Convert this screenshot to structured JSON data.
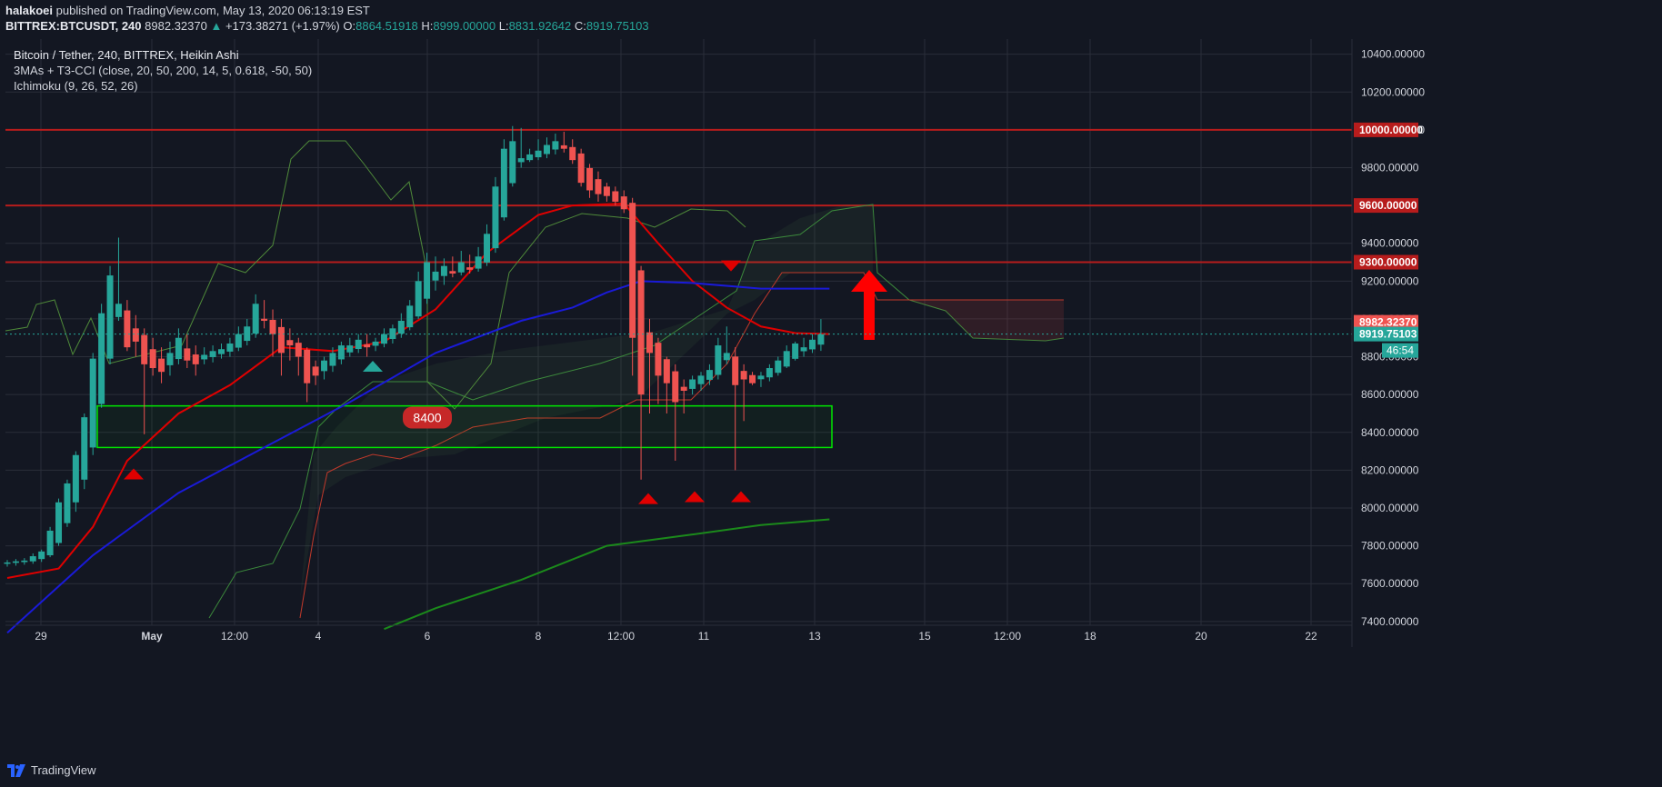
{
  "header": {
    "publisher_line_bold": "halakoei",
    "publisher_line_rest": " published on TradingView.com, May 13, 2020 06:13:19 EST",
    "symbol": "BITTREX:BTCUSDT, 240",
    "last": "8982.32370",
    "change": "+173.38271 (+1.97%)",
    "o_label": "O:",
    "o_val": "8864.51918",
    "h_label": "H:",
    "h_val": "8999.00000",
    "l_label": "L:",
    "l_val": "8831.92642",
    "c_label": "C:",
    "c_val": "8919.75103"
  },
  "legend": {
    "title": "Bitcoin / Tether, 240, BITTREX, Heikin Ashi",
    "ind1": "3MAs + T3-CCI (close, 20, 50, 200, 14, 5, 0.618, -50, 50)",
    "ind2": "Ichimoku (9, 26, 52, 26)"
  },
  "footer": {
    "brand": "TradingView"
  },
  "colors": {
    "bg": "#131722",
    "grid": "#2a2e39",
    "up": "#26a69a",
    "down": "#ef5350",
    "hline": "#b71c1c",
    "box": "#00e600",
    "ma20": "#e00000",
    "ma50": "#1a1ad8",
    "ma200": "#1b8a1b",
    "tenkan": "#2f7fd6",
    "kijun": "#8b2a2a"
  },
  "chart_data": {
    "type": "candlestick",
    "style": "Heikin Ashi",
    "timeframe": "240",
    "ylim": [
      7380,
      10480
    ],
    "y_ticks": [
      "10400.00000",
      "10200.00000",
      "10000.00000",
      "9800.00000",
      "9600.00000",
      "9400.00000",
      "9200.00000",
      "9000.00000",
      "8800.00000",
      "8600.00000",
      "8400.00000",
      "8200.00000",
      "8000.00000",
      "7800.00000",
      "7600.00000",
      "7400.00000"
    ],
    "x_ticks": [
      "29",
      "May",
      "12:00",
      "4",
      "6",
      "8",
      "12:00",
      "11",
      "13",
      "15",
      "12:00",
      "18",
      "20",
      "22"
    ],
    "horizontal_levels": [
      {
        "value": 10000,
        "label": "10000.00000"
      },
      {
        "value": 9600,
        "label": "9600.00000"
      },
      {
        "value": 9300,
        "label": "9300.00000"
      }
    ],
    "price_labels": {
      "last": "8982.32370",
      "close": "8919.75103",
      "countdown": "46:54"
    },
    "support_box": {
      "top": 8540,
      "bottom": 8320
    },
    "annotation": "8400",
    "candles": [
      {
        "o": 7705,
        "h": 7725,
        "l": 7690,
        "c": 7712
      },
      {
        "o": 7710,
        "h": 7730,
        "l": 7695,
        "c": 7718
      },
      {
        "o": 7714,
        "h": 7735,
        "l": 7700,
        "c": 7722
      },
      {
        "o": 7718,
        "h": 7760,
        "l": 7705,
        "c": 7745
      },
      {
        "o": 7730,
        "h": 7780,
        "l": 7715,
        "c": 7770
      },
      {
        "o": 7750,
        "h": 7900,
        "l": 7740,
        "c": 7880
      },
      {
        "o": 7815,
        "h": 8050,
        "l": 7800,
        "c": 8030
      },
      {
        "o": 7920,
        "h": 8150,
        "l": 7900,
        "c": 8130
      },
      {
        "o": 8030,
        "h": 8300,
        "l": 7980,
        "c": 8280
      },
      {
        "o": 8150,
        "h": 8500,
        "l": 8100,
        "c": 8480
      },
      {
        "o": 8320,
        "h": 8820,
        "l": 8280,
        "c": 8790
      },
      {
        "o": 8550,
        "h": 9080,
        "l": 8530,
        "c": 9030
      },
      {
        "o": 8790,
        "h": 9280,
        "l": 8760,
        "c": 9230
      },
      {
        "o": 9010,
        "h": 9430,
        "l": 8990,
        "c": 9080
      },
      {
        "o": 9045,
        "h": 9100,
        "l": 8830,
        "c": 8850
      },
      {
        "o": 8950,
        "h": 9020,
        "l": 8800,
        "c": 8880
      },
      {
        "o": 8915,
        "h": 8950,
        "l": 8390,
        "c": 8760
      },
      {
        "o": 8840,
        "h": 8900,
        "l": 8700,
        "c": 8740
      },
      {
        "o": 8790,
        "h": 8850,
        "l": 8660,
        "c": 8720
      },
      {
        "o": 8755,
        "h": 8880,
        "l": 8700,
        "c": 8820
      },
      {
        "o": 8788,
        "h": 8950,
        "l": 8760,
        "c": 8900
      },
      {
        "o": 8844,
        "h": 8920,
        "l": 8740,
        "c": 8780
      },
      {
        "o": 8812,
        "h": 8860,
        "l": 8700,
        "c": 8760
      },
      {
        "o": 8786,
        "h": 8850,
        "l": 8760,
        "c": 8810
      },
      {
        "o": 8798,
        "h": 8860,
        "l": 8770,
        "c": 8830
      },
      {
        "o": 8814,
        "h": 8870,
        "l": 8790,
        "c": 8840
      },
      {
        "o": 8827,
        "h": 8900,
        "l": 8800,
        "c": 8870
      },
      {
        "o": 8848,
        "h": 8960,
        "l": 8830,
        "c": 8920
      },
      {
        "o": 8884,
        "h": 9000,
        "l": 8860,
        "c": 8960
      },
      {
        "o": 8922,
        "h": 9130,
        "l": 8900,
        "c": 9080
      },
      {
        "o": 9001,
        "h": 9100,
        "l": 8950,
        "c": 8990
      },
      {
        "o": 8995,
        "h": 9050,
        "l": 8800,
        "c": 8920
      },
      {
        "o": 8957,
        "h": 9000,
        "l": 8700,
        "c": 8820
      },
      {
        "o": 8888,
        "h": 8950,
        "l": 8780,
        "c": 8860
      },
      {
        "o": 8874,
        "h": 8900,
        "l": 8700,
        "c": 8800
      },
      {
        "o": 8837,
        "h": 8850,
        "l": 8560,
        "c": 8660
      },
      {
        "o": 8748,
        "h": 8780,
        "l": 8650,
        "c": 8700
      },
      {
        "o": 8724,
        "h": 8800,
        "l": 8680,
        "c": 8780
      },
      {
        "o": 8752,
        "h": 8850,
        "l": 8720,
        "c": 8820
      },
      {
        "o": 8786,
        "h": 8880,
        "l": 8760,
        "c": 8860
      },
      {
        "o": 8823,
        "h": 8900,
        "l": 8800,
        "c": 8860
      },
      {
        "o": 8841,
        "h": 8920,
        "l": 8820,
        "c": 8890
      },
      {
        "o": 8866,
        "h": 8920,
        "l": 8800,
        "c": 8850
      },
      {
        "o": 8858,
        "h": 8900,
        "l": 8830,
        "c": 8880
      },
      {
        "o": 8869,
        "h": 8950,
        "l": 8850,
        "c": 8920
      },
      {
        "o": 8894,
        "h": 8970,
        "l": 8870,
        "c": 8950
      },
      {
        "o": 8922,
        "h": 9030,
        "l": 8900,
        "c": 8990
      },
      {
        "o": 8956,
        "h": 9100,
        "l": 8940,
        "c": 9070
      },
      {
        "o": 9013,
        "h": 9250,
        "l": 9000,
        "c": 9200
      },
      {
        "o": 9107,
        "h": 9350,
        "l": 9080,
        "c": 9300
      },
      {
        "o": 9203,
        "h": 9330,
        "l": 9150,
        "c": 9250
      },
      {
        "o": 9227,
        "h": 9320,
        "l": 9180,
        "c": 9280
      },
      {
        "o": 9253,
        "h": 9330,
        "l": 9220,
        "c": 9240
      },
      {
        "o": 9246,
        "h": 9360,
        "l": 9230,
        "c": 9300
      },
      {
        "o": 9273,
        "h": 9340,
        "l": 9240,
        "c": 9260
      },
      {
        "o": 9266,
        "h": 9380,
        "l": 9250,
        "c": 9330
      },
      {
        "o": 9298,
        "h": 9500,
        "l": 9280,
        "c": 9450
      },
      {
        "o": 9374,
        "h": 9750,
        "l": 9350,
        "c": 9700
      },
      {
        "o": 9537,
        "h": 9950,
        "l": 9520,
        "c": 9900
      },
      {
        "o": 9718,
        "h": 10020,
        "l": 9700,
        "c": 9940
      },
      {
        "o": 9829,
        "h": 10010,
        "l": 9800,
        "c": 9850
      },
      {
        "o": 9840,
        "h": 9900,
        "l": 9830,
        "c": 9870
      },
      {
        "o": 9855,
        "h": 9950,
        "l": 9840,
        "c": 9890
      },
      {
        "o": 9872,
        "h": 9960,
        "l": 9850,
        "c": 9920
      },
      {
        "o": 9896,
        "h": 9980,
        "l": 9870,
        "c": 9940
      },
      {
        "o": 9918,
        "h": 9990,
        "l": 9880,
        "c": 9900
      },
      {
        "o": 9909,
        "h": 9950,
        "l": 9820,
        "c": 9840
      },
      {
        "o": 9875,
        "h": 9900,
        "l": 9700,
        "c": 9720
      },
      {
        "o": 9798,
        "h": 9820,
        "l": 9640,
        "c": 9680
      },
      {
        "o": 9739,
        "h": 9780,
        "l": 9620,
        "c": 9660
      },
      {
        "o": 9700,
        "h": 9720,
        "l": 9620,
        "c": 9650
      },
      {
        "o": 9675,
        "h": 9700,
        "l": 9600,
        "c": 9620
      },
      {
        "o": 9648,
        "h": 9680,
        "l": 9560,
        "c": 9580
      },
      {
        "o": 9614,
        "h": 9640,
        "l": 8700,
        "c": 8900
      },
      {
        "o": 9257,
        "h": 9280,
        "l": 8150,
        "c": 8600
      },
      {
        "o": 8929,
        "h": 9000,
        "l": 8500,
        "c": 8820
      },
      {
        "o": 8874,
        "h": 8900,
        "l": 8550,
        "c": 8700
      },
      {
        "o": 8787,
        "h": 8800,
        "l": 8500,
        "c": 8660
      },
      {
        "o": 8723,
        "h": 8760,
        "l": 8250,
        "c": 8560
      },
      {
        "o": 8641,
        "h": 8680,
        "l": 8500,
        "c": 8620
      },
      {
        "o": 8630,
        "h": 8700,
        "l": 8600,
        "c": 8680
      },
      {
        "o": 8655,
        "h": 8720,
        "l": 8620,
        "c": 8700
      },
      {
        "o": 8678,
        "h": 8760,
        "l": 8650,
        "c": 8730
      },
      {
        "o": 8704,
        "h": 8900,
        "l": 8680,
        "c": 8860
      },
      {
        "o": 8782,
        "h": 8960,
        "l": 8760,
        "c": 8820
      },
      {
        "o": 8801,
        "h": 8850,
        "l": 8200,
        "c": 8650
      },
      {
        "o": 8725,
        "h": 8760,
        "l": 8460,
        "c": 8680
      },
      {
        "o": 8703,
        "h": 8720,
        "l": 8650,
        "c": 8660
      },
      {
        "o": 8681,
        "h": 8720,
        "l": 8640,
        "c": 8700
      },
      {
        "o": 8691,
        "h": 8760,
        "l": 8670,
        "c": 8740
      },
      {
        "o": 8715,
        "h": 8800,
        "l": 8700,
        "c": 8780
      },
      {
        "o": 8748,
        "h": 8860,
        "l": 8740,
        "c": 8830
      },
      {
        "o": 8789,
        "h": 8880,
        "l": 8780,
        "c": 8870
      },
      {
        "o": 8829,
        "h": 8900,
        "l": 8800,
        "c": 8850
      },
      {
        "o": 8839,
        "h": 8920,
        "l": 8820,
        "c": 8890
      },
      {
        "o": 8864,
        "h": 8999,
        "l": 8831,
        "c": 8919
      }
    ],
    "indicators": [
      {
        "name": "ma20",
        "values": [
          [
            0,
            7630
          ],
          [
            6,
            7680
          ],
          [
            10,
            7900
          ],
          [
            14,
            8250
          ],
          [
            20,
            8500
          ],
          [
            26,
            8650
          ],
          [
            32,
            8850
          ],
          [
            38,
            8830
          ],
          [
            44,
            8880
          ],
          [
            50,
            9050
          ],
          [
            56,
            9350
          ],
          [
            62,
            9550
          ],
          [
            66,
            9600
          ],
          [
            72,
            9610
          ],
          [
            76,
            9400
          ],
          [
            80,
            9200
          ],
          [
            84,
            9060
          ],
          [
            88,
            8960
          ],
          [
            92,
            8925
          ],
          [
            96,
            8920
          ]
        ]
      },
      {
        "name": "ma50",
        "values": [
          [
            0,
            7340
          ],
          [
            10,
            7750
          ],
          [
            20,
            8080
          ],
          [
            30,
            8320
          ],
          [
            40,
            8560
          ],
          [
            50,
            8820
          ],
          [
            60,
            8990
          ],
          [
            66,
            9060
          ],
          [
            70,
            9140
          ],
          [
            74,
            9200
          ],
          [
            80,
            9190
          ],
          [
            88,
            9160
          ],
          [
            96,
            9160
          ]
        ]
      },
      {
        "name": "ma200",
        "values": [
          [
            44,
            7360
          ],
          [
            50,
            7470
          ],
          [
            60,
            7620
          ],
          [
            70,
            7800
          ],
          [
            80,
            7860
          ],
          [
            88,
            7910
          ],
          [
            96,
            7940
          ]
        ]
      }
    ],
    "signals": [
      {
        "type": "up-arrow",
        "value": 8180
      },
      {
        "type": "up-arrow",
        "value": 8750
      },
      {
        "type": "up-arrow",
        "value": 8050
      },
      {
        "type": "up-arrow",
        "value": 8060
      },
      {
        "type": "up-arrow",
        "value": 8060
      },
      {
        "type": "down-arrow",
        "value": 9280
      },
      {
        "type": "big-up-arrow",
        "value": 9240
      }
    ]
  }
}
